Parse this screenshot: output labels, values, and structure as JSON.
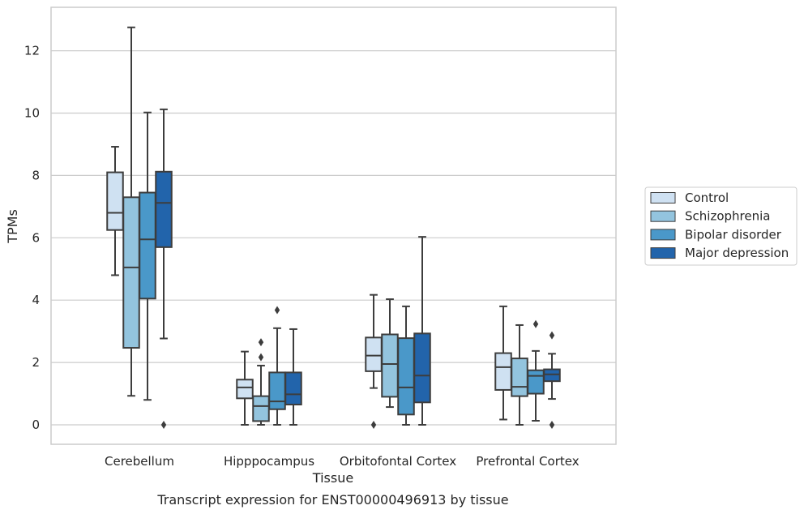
{
  "chart_data": {
    "type": "boxplot",
    "xlabel": "Tissue",
    "ylabel": "TPMs",
    "caption": "Transcript expression for ENST00000496913 by tissue",
    "categories": [
      "Cerebellum",
      "Hipppocampus",
      "Orbitofontal Cortex",
      "Prefrontal Cortex"
    ],
    "yticks": [
      0,
      2,
      4,
      6,
      8,
      10,
      12
    ],
    "ylim": [
      -0.6,
      13.6
    ],
    "grid": "horizontal",
    "legend_position": "right",
    "series": [
      {
        "name": "Control",
        "color": "#cfe1f2",
        "boxes": [
          {
            "whislo": 4.8,
            "q1": 6.25,
            "med": 6.8,
            "q3": 8.1,
            "whishi": 8.92,
            "fliers": []
          },
          {
            "whislo": 0.0,
            "q1": 0.85,
            "med": 1.2,
            "q3": 1.45,
            "whishi": 2.35,
            "fliers": []
          },
          {
            "whislo": 1.18,
            "q1": 1.72,
            "med": 2.22,
            "q3": 2.8,
            "whishi": 4.17,
            "fliers": [
              0.0
            ]
          },
          {
            "whislo": 0.17,
            "q1": 1.12,
            "med": 1.85,
            "q3": 2.3,
            "whishi": 3.8,
            "fliers": []
          }
        ]
      },
      {
        "name": "Schizophrenia",
        "color": "#93c4de",
        "boxes": [
          {
            "whislo": 0.93,
            "q1": 2.47,
            "med": 5.05,
            "q3": 7.3,
            "whishi": 12.75,
            "fliers": []
          },
          {
            "whislo": 0.0,
            "q1": 0.12,
            "med": 0.6,
            "q3": 0.92,
            "whishi": 1.9,
            "fliers": [
              2.17,
              2.65
            ]
          },
          {
            "whislo": 0.57,
            "q1": 0.9,
            "med": 1.95,
            "q3": 2.9,
            "whishi": 4.03,
            "fliers": []
          },
          {
            "whislo": 0.0,
            "q1": 0.92,
            "med": 1.22,
            "q3": 2.13,
            "whishi": 3.2,
            "fliers": []
          }
        ]
      },
      {
        "name": "Bipolar disorder",
        "color": "#4a98c9",
        "boxes": [
          {
            "whislo": 0.8,
            "q1": 4.05,
            "med": 5.95,
            "q3": 7.45,
            "whishi": 10.02,
            "fliers": []
          },
          {
            "whislo": 0.0,
            "q1": 0.5,
            "med": 0.75,
            "q3": 1.68,
            "whishi": 3.1,
            "fliers": [
              3.68
            ]
          },
          {
            "whislo": 0.0,
            "q1": 0.33,
            "med": 1.2,
            "q3": 2.78,
            "whishi": 3.8,
            "fliers": []
          },
          {
            "whislo": 0.13,
            "q1": 1.0,
            "med": 1.57,
            "q3": 1.75,
            "whishi": 2.37,
            "fliers": [
              3.23
            ]
          }
        ]
      },
      {
        "name": "Major depression",
        "color": "#2264ab",
        "boxes": [
          {
            "whislo": 2.77,
            "q1": 5.7,
            "med": 7.12,
            "q3": 8.12,
            "whishi": 10.12,
            "fliers": [
              0.0
            ]
          },
          {
            "whislo": 0.0,
            "q1": 0.65,
            "med": 0.98,
            "q3": 1.68,
            "whishi": 3.07,
            "fliers": []
          },
          {
            "whislo": 0.0,
            "q1": 0.72,
            "med": 1.58,
            "q3": 2.93,
            "whishi": 6.03,
            "fliers": []
          },
          {
            "whislo": 0.83,
            "q1": 1.4,
            "med": 1.62,
            "q3": 1.78,
            "whishi": 2.28,
            "fliers": [
              0.0,
              2.87
            ]
          }
        ]
      }
    ]
  }
}
